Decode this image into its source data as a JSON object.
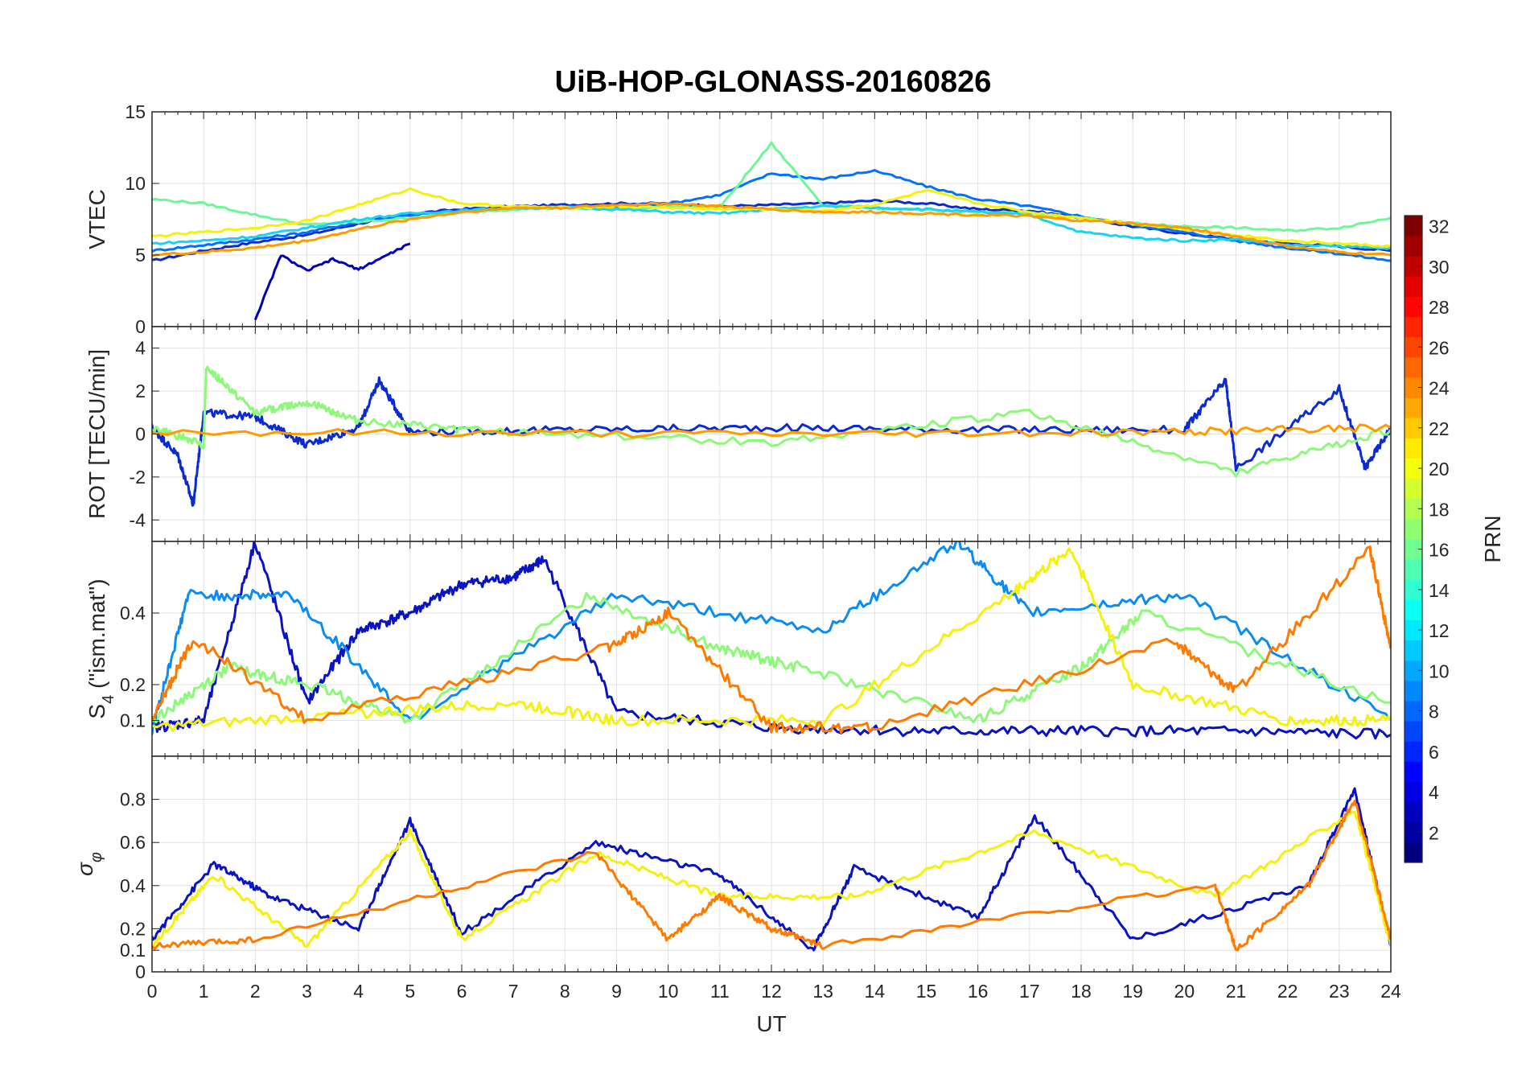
{
  "title": "UiB-HOP-GLONASS-20160826",
  "chart_data": [
    {
      "type": "line",
      "panel": "vtec",
      "ylabel": "VTEC",
      "ylim": [
        0,
        15
      ],
      "yticks": [
        0,
        5,
        10,
        15
      ],
      "xlim": [
        0,
        24
      ],
      "grid": true,
      "series": [
        {
          "color_prn": 4,
          "color": "#0a2bd4",
          "x": [
            0,
            1,
            2,
            3,
            4,
            5,
            6,
            7,
            8,
            9,
            10,
            11,
            12,
            13,
            14,
            15,
            16,
            17,
            18,
            19,
            20,
            21,
            22,
            23,
            24
          ],
          "y": [
            4.6,
            5.3,
            5.9,
            6.4,
            7.2,
            7.9,
            8.2,
            8.4,
            8.5,
            8.6,
            8.6,
            8.4,
            8.5,
            8.6,
            8.8,
            8.6,
            8.2,
            8.1,
            7.6,
            7.0,
            6.5,
            6.1,
            5.8,
            5.6,
            5.3
          ]
        },
        {
          "color_prn": 9,
          "color": "#0072ff",
          "x": [
            0,
            1,
            2,
            3,
            4,
            5,
            6,
            7,
            8,
            9,
            10,
            11,
            12,
            13,
            14,
            15,
            16,
            17,
            18,
            19,
            20,
            21,
            22,
            23,
            24
          ],
          "y": [
            5.3,
            5.7,
            6.1,
            6.6,
            7.3,
            7.8,
            8.1,
            8.3,
            8.4,
            8.3,
            8.6,
            9.2,
            10.7,
            10.3,
            10.9,
            9.8,
            8.9,
            8.4,
            7.7,
            7.1,
            6.6,
            6.0,
            5.5,
            5.1,
            4.6
          ]
        },
        {
          "color_prn": 15,
          "color": "#6df797",
          "x": [
            0,
            1,
            2,
            3,
            4,
            5,
            6,
            7,
            8,
            9,
            10,
            11,
            12,
            13,
            14,
            15,
            16,
            17,
            18,
            19,
            20,
            21,
            22,
            23,
            24
          ],
          "y": [
            8.9,
            8.6,
            7.8,
            7.1,
            7.3,
            7.6,
            8.0,
            8.2,
            8.3,
            8.2,
            8.4,
            8.3,
            12.8,
            8.5,
            8.3,
            8.1,
            8.0,
            7.9,
            7.6,
            7.2,
            7.0,
            6.9,
            6.7,
            6.9,
            7.6
          ]
        },
        {
          "color_prn": 12,
          "color": "#19d3f2",
          "x": [
            0,
            1,
            2,
            3,
            4,
            5,
            6,
            7,
            8,
            9,
            10,
            11,
            12,
            13,
            14,
            15,
            16,
            17,
            18,
            19,
            20,
            21,
            22,
            23,
            24
          ],
          "y": [
            5.8,
            6.0,
            6.3,
            6.9,
            7.5,
            7.9,
            8.1,
            8.3,
            8.3,
            8.2,
            8.0,
            7.9,
            8.2,
            8.4,
            8.3,
            8.2,
            8.0,
            7.8,
            6.6,
            6.2,
            6.0,
            6.1,
            5.7,
            5.6,
            5.5
          ]
        },
        {
          "color_prn": 20,
          "color": "#f4f20a",
          "x": [
            0,
            1,
            2,
            3,
            4,
            5,
            6,
            7,
            8,
            9,
            10,
            11,
            12,
            13,
            14,
            15,
            16,
            17,
            18,
            19,
            20,
            21,
            22,
            23,
            24
          ],
          "y": [
            6.3,
            6.6,
            6.9,
            7.4,
            8.5,
            9.6,
            8.6,
            8.4,
            8.3,
            8.4,
            8.3,
            8.2,
            8.2,
            8.1,
            8.5,
            9.5,
            8.6,
            8.0,
            7.6,
            7.2,
            6.8,
            6.4,
            6.0,
            5.8,
            5.6
          ]
        },
        {
          "color_prn": 23,
          "color": "#ff9a00",
          "x": [
            0,
            1,
            2,
            3,
            4,
            5,
            6,
            7,
            8,
            9,
            10,
            11,
            12,
            13,
            14,
            15,
            16,
            17,
            18,
            19,
            20,
            21,
            22,
            23,
            24
          ],
          "y": [
            5.0,
            5.2,
            5.5,
            6.0,
            6.8,
            7.5,
            8.0,
            8.3,
            8.3,
            8.5,
            8.6,
            8.4,
            8.2,
            8.0,
            8.0,
            7.9,
            7.8,
            7.7,
            7.4,
            7.2,
            6.9,
            6.3,
            5.6,
            5.2,
            5.0
          ]
        },
        {
          "color_prn": 2,
          "color": "#0000b8",
          "x": [
            2.0,
            2.5,
            3.0,
            3.5,
            4.0,
            4.5,
            5.0
          ],
          "y": [
            0.5,
            5.0,
            3.9,
            4.7,
            4.0,
            4.9,
            5.8
          ]
        }
      ]
    },
    {
      "type": "line",
      "panel": "rot",
      "ylabel": "ROT [TECU/min]",
      "ylim": [
        -5,
        5
      ],
      "yticks": [
        -4,
        -2,
        0,
        2,
        4
      ],
      "xlim": [
        0,
        24
      ],
      "grid": true,
      "series": [
        {
          "color_prn": 4,
          "color": "#0a2bd4",
          "x": [
            0,
            0.5,
            0.8,
            1,
            2,
            3,
            4,
            4.4,
            5,
            8,
            12,
            16,
            20,
            20.8,
            21,
            23,
            23.5,
            24
          ],
          "y": [
            0.3,
            -1.0,
            -3.3,
            1.0,
            0.8,
            -0.5,
            0.3,
            2.5,
            0.1,
            0.2,
            0.3,
            0.2,
            0.2,
            2.5,
            -1.6,
            2.1,
            -1.6,
            0.3
          ]
        },
        {
          "color_prn": 16,
          "color": "#8cf978",
          "x": [
            0,
            1,
            1.05,
            2,
            3,
            4,
            6,
            12,
            17,
            21,
            24
          ],
          "y": [
            0.3,
            -0.5,
            3.1,
            1.0,
            1.5,
            0.6,
            0.2,
            -0.4,
            1.0,
            -1.8,
            0.2
          ]
        },
        {
          "color_prn": 23,
          "color": "#ff9a00",
          "x": [
            0,
            12,
            20,
            24
          ],
          "y": [
            0.1,
            0.0,
            0.1,
            0.3
          ]
        }
      ]
    },
    {
      "type": "line",
      "panel": "s4",
      "ylabel": "S4 (\"ism.mat\")",
      "ylim": [
        0,
        0.6
      ],
      "yticks": [
        0.1,
        0.2,
        0.4
      ],
      "xlim": [
        0,
        24
      ],
      "grid": true,
      "series": [
        {
          "color_prn": 3,
          "color": "#0a13c4",
          "x": [
            0,
            1,
            2,
            3,
            4,
            5,
            6,
            7,
            7.6,
            9,
            12,
            15,
            18,
            21,
            24
          ],
          "y": [
            0.08,
            0.1,
            0.6,
            0.15,
            0.35,
            0.4,
            0.48,
            0.5,
            0.55,
            0.12,
            0.08,
            0.07,
            0.07,
            0.07,
            0.06
          ]
        },
        {
          "color_prn": 10,
          "color": "#0a8cf4",
          "x": [
            0,
            0.7,
            2.7,
            5,
            9,
            13,
            15.6,
            17,
            20,
            24
          ],
          "y": [
            0.07,
            0.45,
            0.45,
            0.1,
            0.45,
            0.35,
            0.6,
            0.4,
            0.45,
            0.1
          ]
        },
        {
          "color_prn": 16,
          "color": "#8cf978",
          "x": [
            0,
            1.5,
            3,
            5,
            8.5,
            11,
            12.5,
            16,
            18,
            19.2,
            24
          ],
          "y": [
            0.1,
            0.25,
            0.2,
            0.1,
            0.45,
            0.3,
            0.25,
            0.1,
            0.25,
            0.4,
            0.15
          ]
        },
        {
          "color_prn": 20,
          "color": "#f4f20a",
          "x": [
            0,
            4,
            7,
            9,
            13,
            16.6,
            17.8,
            19,
            22,
            24
          ],
          "y": [
            0.08,
            0.12,
            0.15,
            0.1,
            0.1,
            0.45,
            0.58,
            0.2,
            0.1,
            0.1
          ]
        },
        {
          "color_prn": 24,
          "color": "#ff7a00",
          "x": [
            0,
            0.8,
            3,
            8.8,
            10,
            12,
            14,
            19.8,
            21,
            23.6,
            24
          ],
          "y": [
            0.1,
            0.33,
            0.1,
            0.3,
            0.4,
            0.08,
            0.08,
            0.32,
            0.18,
            0.58,
            0.3
          ]
        }
      ]
    },
    {
      "type": "line",
      "panel": "sigma_phi",
      "ylabel": "σφ",
      "ylim": [
        0,
        1
      ],
      "yticks": [
        0,
        0.1,
        0.2,
        0.4,
        0.6,
        0.8
      ],
      "xlim": [
        0,
        24
      ],
      "xticks": [
        0,
        1,
        2,
        3,
        4,
        5,
        6,
        7,
        8,
        9,
        10,
        11,
        12,
        13,
        14,
        15,
        16,
        17,
        18,
        19,
        20,
        21,
        22,
        23,
        24
      ],
      "xlabel": "UT",
      "grid": true,
      "series": [
        {
          "color_prn": 3,
          "color": "#0a13c4",
          "x": [
            0,
            1.2,
            2.3,
            4,
            5,
            6,
            8.6,
            11,
            12.8,
            13.6,
            16,
            17.1,
            19,
            22.4,
            23.3,
            24
          ],
          "y": [
            0.15,
            0.5,
            0.35,
            0.2,
            0.7,
            0.18,
            0.6,
            0.45,
            0.1,
            0.48,
            0.25,
            0.72,
            0.15,
            0.4,
            0.85,
            0.12
          ]
        },
        {
          "color_prn": 20,
          "color": "#f4f20a",
          "x": [
            0,
            1.2,
            3,
            5,
            6,
            8.6,
            11,
            13.6,
            17.1,
            20.6,
            23.3,
            24
          ],
          "y": [
            0.12,
            0.45,
            0.12,
            0.65,
            0.15,
            0.55,
            0.35,
            0.35,
            0.65,
            0.35,
            0.75,
            0.12
          ]
        },
        {
          "color_prn": 24,
          "color": "#ff7a00",
          "x": [
            0,
            2,
            8.6,
            10,
            11,
            12,
            13,
            20.6,
            21,
            22.4,
            23.3,
            24
          ],
          "y": [
            0.12,
            0.15,
            0.55,
            0.15,
            0.35,
            0.2,
            0.12,
            0.4,
            0.1,
            0.4,
            0.8,
            0.15
          ]
        }
      ]
    },
    {
      "type": "heatmap",
      "panel": "colorbar",
      "label": "PRN",
      "range": [
        1,
        32
      ],
      "ticks": [
        2,
        4,
        6,
        8,
        10,
        12,
        14,
        16,
        18,
        20,
        22,
        24,
        26,
        28,
        30,
        32
      ],
      "colormap": "jet"
    }
  ]
}
